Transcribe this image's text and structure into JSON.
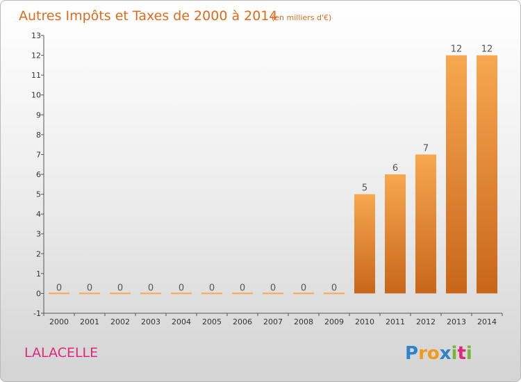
{
  "chart_data": {
    "type": "bar",
    "title": "Autres Impôts et Taxes de 2000 à 2014",
    "subtitle": "(en milliers d'€)",
    "categories": [
      "2000",
      "2001",
      "2002",
      "2003",
      "2004",
      "2005",
      "2006",
      "2007",
      "2008",
      "2009",
      "2010",
      "2011",
      "2012",
      "2013",
      "2014"
    ],
    "values": [
      0,
      0,
      0,
      0,
      0,
      0,
      0,
      0,
      0,
      0,
      5,
      6,
      7,
      12,
      12
    ],
    "data_labels": [
      "0",
      "0",
      "0",
      "0",
      "0",
      "0",
      "0",
      "0",
      "0",
      "0",
      "5",
      "6",
      "7",
      "12",
      "12"
    ],
    "ylim": [
      -1,
      13
    ],
    "yticks": [
      -1,
      0,
      1,
      2,
      3,
      4,
      5,
      6,
      7,
      8,
      9,
      10,
      11,
      12,
      13
    ],
    "ytick_labels": [
      "-1",
      "0",
      "1",
      "2",
      "3",
      "4",
      "5",
      "6",
      "7",
      "8",
      "9",
      "10",
      "11",
      "12",
      "13"
    ],
    "grid": false,
    "bar_color_light": "#f7a850",
    "bar_color_dark": "#c8661a",
    "title_color": "#e06a1c"
  },
  "commune_name": "LALACELLE",
  "brand": {
    "name": "Proxiti",
    "letters": [
      "P",
      "r",
      "o",
      "x",
      "i",
      "t",
      "i"
    ],
    "letter_colors": [
      "#2f83c9",
      "#f19a1c",
      "#f19a1c",
      "#2f83c9",
      "#7ab33c",
      "#e0277a",
      "#7ab33c"
    ]
  }
}
